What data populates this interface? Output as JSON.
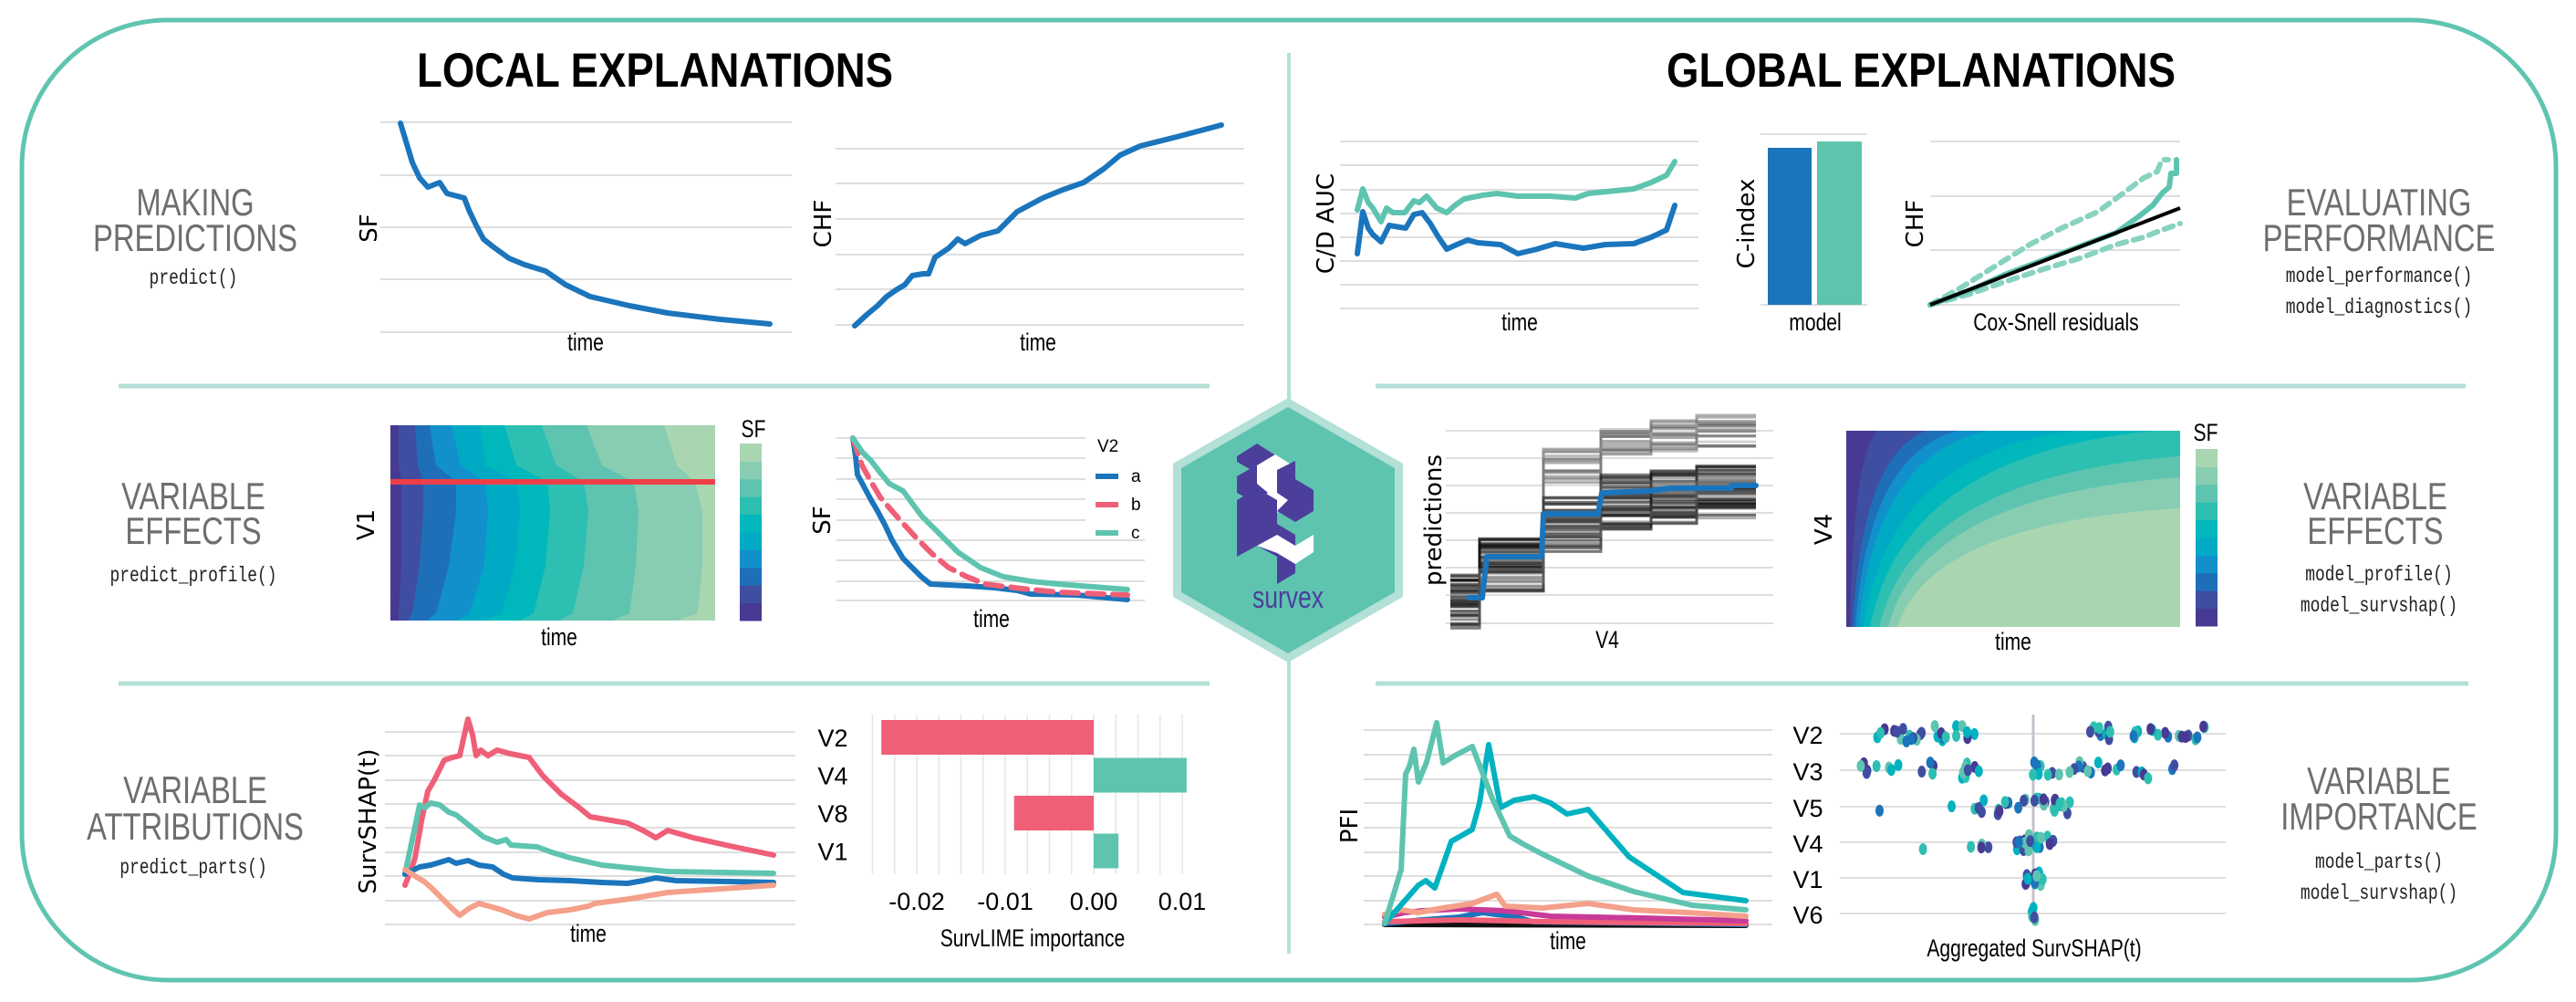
{
  "sections": {
    "local_title": "LOCAL EXPLANATIONS",
    "global_title": "GLOBAL EXPLANATIONS"
  },
  "logo": {
    "text": "survex"
  },
  "local": {
    "predictions": {
      "label_lines": [
        "MAKING",
        "PREDICTIONS"
      ],
      "code": "predict()",
      "sf_chart": {
        "ylabel": "SF",
        "xlabel": "time"
      },
      "chf_chart": {
        "ylabel": "CHF",
        "xlabel": "time"
      }
    },
    "effects": {
      "label_lines": [
        "VARIABLE",
        "EFFECTS"
      ],
      "code": "predict_profile()",
      "heatmap": {
        "ylabel": "V1",
        "xlabel": "time",
        "colorbar_title": "SF"
      },
      "profile": {
        "ylabel": "SF",
        "xlabel": "time",
        "legend_title": "V2",
        "legend": [
          "a",
          "b",
          "c"
        ]
      }
    },
    "attributions": {
      "label_lines": [
        "VARIABLE",
        "ATTRIBUTIONS"
      ],
      "code": "predict_parts()",
      "survshap": {
        "ylabel": "SurvSHAP(t)",
        "xlabel": "time"
      }
    }
  },
  "global": {
    "performance": {
      "label_lines": [
        "EVALUATING",
        "PERFORMANCE"
      ],
      "codes": [
        "model_performance()",
        "model_diagnostics()"
      ],
      "auc_chart": {
        "ylabel": "C/D AUC",
        "xlabel": "time"
      },
      "cindex_chart": {
        "ylabel": "C-index",
        "xlabel": "model"
      },
      "diag_chart": {
        "ylabel": "CHF",
        "xlabel": "Cox-Snell residuals"
      }
    },
    "effects": {
      "label_lines": [
        "VARIABLE",
        "EFFECTS"
      ],
      "codes": [
        "model_profile()",
        "model_survshap()"
      ],
      "predictions_chart": {
        "ylabel": "predictions",
        "xlabel": "V4"
      },
      "heatmap": {
        "ylabel": "V4",
        "xlabel": "time",
        "colorbar_title": "SF"
      }
    },
    "importance": {
      "label_lines": [
        "VARIABLE",
        "IMPORTANCE"
      ],
      "codes": [
        "model_parts()",
        "model_survshap()"
      ],
      "pfi_chart": {
        "ylabel": "PFI",
        "xlabel": "time"
      }
    }
  },
  "colors": {
    "frame": "#5fc4b0",
    "divider": "#b3e0d7",
    "blue": "#1b75bc",
    "teal": "#5ec4b0",
    "red": "#ef5f78",
    "salmon": "#f4a08a",
    "cyan": "#00b2c0",
    "magenta": "#c93b98",
    "purple": "#463a93",
    "label_grey": "#6d6e71"
  },
  "chart_data": [
    {
      "type": "bar",
      "orientation": "horizontal",
      "title": "",
      "categories": [
        "V2",
        "V4",
        "V8",
        "V1"
      ],
      "values": [
        -0.024,
        0.0105,
        -0.009,
        0.0028
      ],
      "xlabel": "SurvLIME importance",
      "ylabel": "",
      "xlim": [
        -0.025,
        0.0115
      ],
      "tick_values": [
        -0.02,
        -0.01,
        0.0,
        0.01
      ],
      "tick_labels": [
        "-0.02",
        "-0.01",
        "0.00",
        "0.01"
      ]
    },
    {
      "type": "scatter",
      "title": "",
      "categories": [
        "V2",
        "V3",
        "V5",
        "V4",
        "V1",
        "V6"
      ],
      "xlabel": "Aggregated SurvSHAP(t)",
      "ylabel": ""
    }
  ]
}
